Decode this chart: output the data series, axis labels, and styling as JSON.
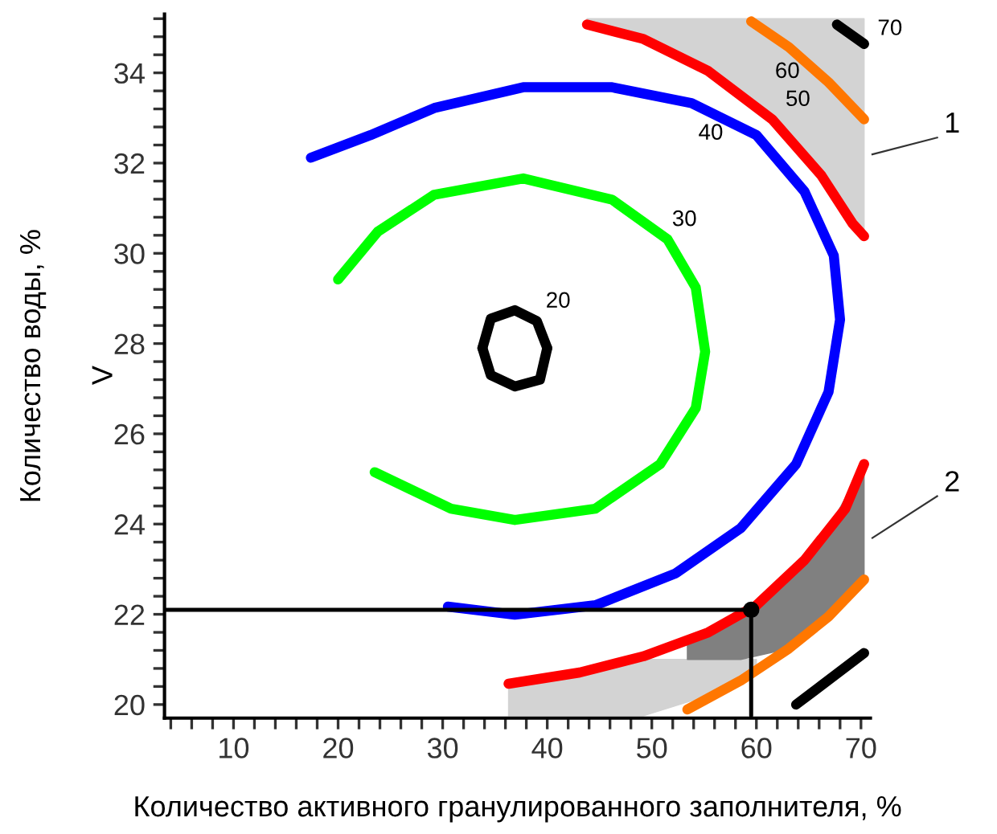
{
  "chart_data": {
    "type": "line",
    "xlabel": "Количество активного гранулированного заполнителя, %",
    "ylabel": "Количество воды, %",
    "xlim": [
      3.4,
      70.9
    ],
    "ylim": [
      19.7,
      35.3
    ],
    "xticks": [
      {
        "value": 4,
        "label": null
      },
      {
        "value": 6,
        "label": null
      },
      {
        "value": 8,
        "label": null
      },
      10,
      {
        "value": 12,
        "label": null
      },
      {
        "value": 14,
        "label": null
      },
      {
        "value": 16,
        "label": null
      },
      {
        "value": 18,
        "label": null
      },
      20,
      {
        "value": 22,
        "label": null
      },
      {
        "value": 24,
        "label": null
      },
      {
        "value": 26,
        "label": null
      },
      {
        "value": 28,
        "label": null
      },
      30,
      {
        "value": 32,
        "label": null
      },
      {
        "value": 34,
        "label": null
      },
      {
        "value": 36,
        "label": null
      },
      {
        "value": 38,
        "label": null
      },
      40,
      {
        "value": 42,
        "label": null
      },
      {
        "value": 44,
        "label": null
      },
      {
        "value": 46,
        "label": null
      },
      {
        "value": 48,
        "label": null
      },
      50,
      {
        "value": 52,
        "label": null
      },
      {
        "value": 54,
        "label": null
      },
      {
        "value": 56,
        "label": null
      },
      {
        "value": 58,
        "label": null
      },
      60,
      {
        "value": 62,
        "label": null
      },
      {
        "value": 64,
        "label": null
      },
      {
        "value": 66,
        "label": null
      },
      {
        "value": 68,
        "label": null
      },
      70
    ],
    "yticks": [
      20,
      {
        "value": 20.4,
        "label": null
      },
      {
        "value": 20.8,
        "label": null
      },
      {
        "value": 21.2,
        "label": null
      },
      {
        "value": 21.6,
        "label": null
      },
      22,
      {
        "value": 22.4,
        "label": null
      },
      {
        "value": 22.8,
        "label": null
      },
      {
        "value": 23.2,
        "label": null
      },
      {
        "value": 23.6,
        "label": null
      },
      24,
      {
        "value": 24.4,
        "label": null
      },
      {
        "value": 24.8,
        "label": null
      },
      {
        "value": 25.2,
        "label": null
      },
      {
        "value": 25.6,
        "label": null
      },
      26,
      {
        "value": 26.4,
        "label": null
      },
      {
        "value": 26.8,
        "label": null
      },
      {
        "value": 27.2,
        "label": null
      },
      {
        "value": 27.6,
        "label": null
      },
      28,
      {
        "value": 28.4,
        "label": null
      },
      {
        "value": 28.8,
        "label": null
      },
      {
        "value": 29.2,
        "label": null
      },
      {
        "value": 29.6,
        "label": null
      },
      30,
      {
        "value": 30.4,
        "label": null
      },
      {
        "value": 30.8,
        "label": null
      },
      {
        "value": 31.2,
        "label": null
      },
      {
        "value": 31.6,
        "label": null
      },
      32,
      {
        "value": 32.4,
        "label": null
      },
      {
        "value": 32.8,
        "label": null
      },
      {
        "value": 33.2,
        "label": null
      },
      {
        "value": 33.6,
        "label": null
      },
      34,
      {
        "value": 34.4,
        "label": null
      },
      {
        "value": 34.8,
        "label": null
      },
      {
        "value": 35.2,
        "label": null
      }
    ],
    "grid": false,
    "legend": false,
    "series": [
      {
        "name": "20",
        "color": "#000000",
        "x": [
          33.8,
          34.6,
          36.9,
          39.0,
          40.0
        ],
        "values": [
          27.9,
          28.55,
          28.74,
          28.5,
          27.9
        ]
      },
      {
        "color": "#000000",
        "x": [
          33.8,
          34.6,
          36.9,
          39.3,
          40.0
        ],
        "values": [
          27.9,
          27.3,
          27.05,
          27.2,
          27.9
        ]
      },
      {
        "name": "30",
        "color": "#00ff00",
        "x": [
          23.5,
          30.8,
          36.9,
          44.6,
          50.8,
          54.2,
          55.1,
          54.2,
          51.5,
          46.2,
          37.7,
          29.2,
          23.8,
          20.0
        ],
        "values": [
          25.15,
          24.34,
          24.09,
          24.34,
          25.33,
          26.57,
          27.82,
          29.24,
          30.31,
          31.19,
          31.66,
          31.3,
          30.48,
          29.42
        ]
      },
      {
        "name": "40",
        "color": "#0000ff",
        "x": [
          30.5,
          36.9,
          44.6,
          52.3,
          58.5,
          63.8,
          66.9,
          68.0,
          67.4,
          64.6,
          60.0,
          53.8,
          46.2,
          37.7,
          29.2,
          23.1,
          17.4
        ],
        "values": [
          22.17,
          21.99,
          22.2,
          22.91,
          23.91,
          25.33,
          26.93,
          28.53,
          29.95,
          31.37,
          32.62,
          33.33,
          33.68,
          33.68,
          33.22,
          32.62,
          32.12
        ]
      },
      {
        "name": "50",
        "color": "#ff0000",
        "x": [
          43.8,
          49.2,
          55.4,
          61.5,
          66.2,
          69.2,
          70.3
        ],
        "values": [
          35.07,
          34.75,
          34.04,
          32.97,
          31.73,
          30.66,
          30.38
        ],
        "lower": [
          35.07,
          34.75,
          34.04,
          32.97,
          31.73,
          30.66,
          30.38
        ],
        "upper": [
          35.2,
          35.2,
          35.2,
          35.2,
          35.2,
          35.2,
          35.2
        ]
      },
      {
        "color": "#ff0000",
        "x": [
          36.3,
          43.1,
          49.2,
          55.4,
          60.0,
          64.6,
          68.5,
          70.3
        ],
        "values": [
          20.46,
          20.71,
          21.07,
          21.6,
          22.2,
          23.2,
          24.34,
          25.33
        ],
        "lower": [
          19.75,
          19.75,
          19.75,
          20.2,
          20.75,
          null,
          null,
          null
        ],
        "upper": [
          20.46,
          20.71,
          21.0,
          21.0,
          21.0,
          null,
          null,
          null
        ]
      },
      {
        "name": "60",
        "color": "#ff7700",
        "x": [
          59.5,
          63.1,
          66.9,
          70.3
        ],
        "values": [
          35.14,
          34.57,
          33.79,
          32.97
        ]
      },
      {
        "color": "#ff7700",
        "x": [
          53.4,
          58.5,
          63.1,
          66.9,
          70.3
        ],
        "values": [
          19.89,
          20.53,
          21.24,
          21.95,
          22.77
        ],
        "lower": [
          21.0,
          21.0,
          21.24,
          21.95,
          22.77
        ],
        "upper": [
          21.4,
          22.0,
          22.85,
          23.9,
          25.33
        ]
      },
      {
        "name": "70",
        "color": "#000000",
        "x": [
          67.7,
          70.3
        ],
        "values": [
          35.07,
          34.64
        ]
      },
      {
        "color": "#000000",
        "x": [
          63.8,
          70.3
        ],
        "values": [
          20.0,
          21.14
        ]
      },
      {
        "color": "#000000",
        "line_style": "solid",
        "x": [
          3.5,
          59.5,
          59.5
        ],
        "values": [
          22.1,
          22.1,
          19.75
        ]
      },
      {
        "type": "scatter",
        "color": "#000000",
        "marker": "circle",
        "x": [
          59.5
        ],
        "values": [
          22.1
        ]
      }
    ],
    "annotations": [
      "1",
      "2",
      "V"
    ]
  }
}
